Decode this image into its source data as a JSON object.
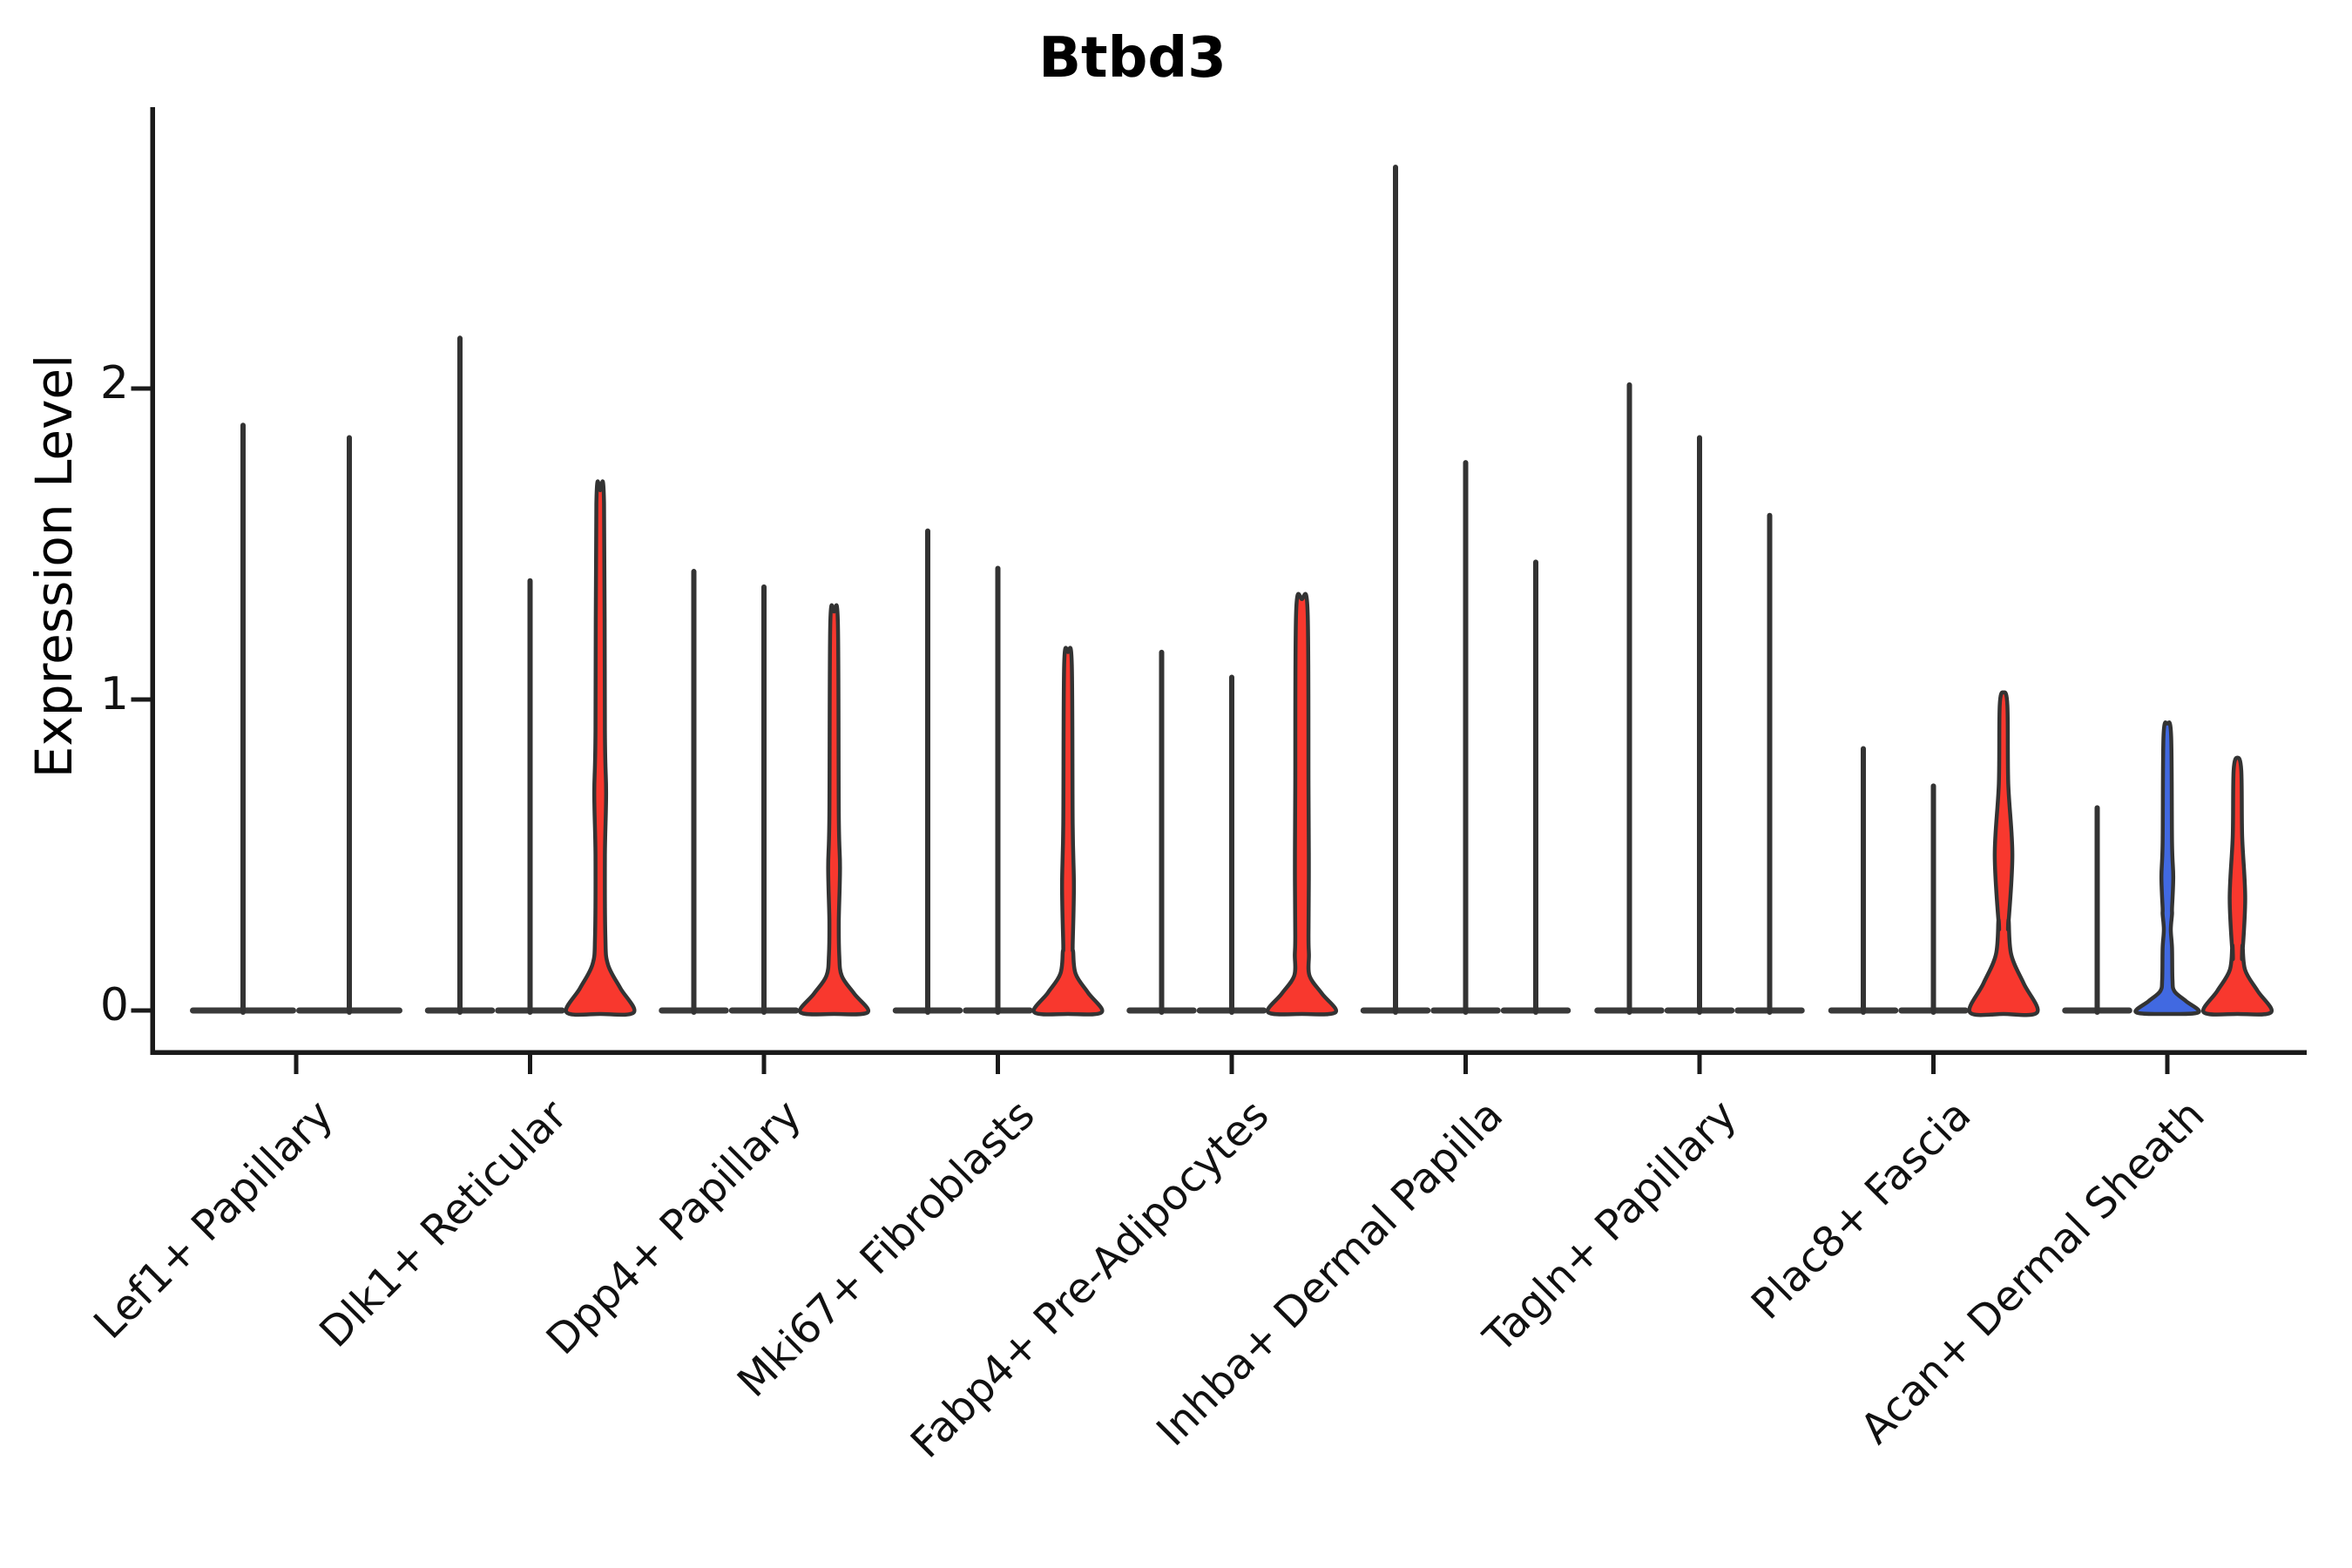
{
  "title": "Btbd3",
  "ylabel": "Expression Level",
  "colors": {
    "red": "#F8382E",
    "blue": "#4169E1",
    "outline": "#333333",
    "axis": "#1a1a1a",
    "base_line": "#3a3a3a",
    "text": "#000000"
  },
  "chart_data": {
    "type": "violin",
    "title": "Btbd3",
    "xlabel": "",
    "ylabel": "Expression Level",
    "ylim": [
      0,
      2.9
    ],
    "yticks": [
      0,
      1,
      2
    ],
    "grid": false,
    "legend": null,
    "categories": [
      "Lef1+ Papillary",
      "Dlk1+ Reticular",
      "Dpp4+ Papillary",
      "Mki67+ Fibroblasts",
      "Fabp4+ Pre-Adipocytes",
      "Inhba+ Dermal Papilla",
      "Tagln+ Papillary",
      "Plac8+ Fascia",
      "Acan+ Dermal Sheath"
    ],
    "groups": [
      {
        "category": "Lef1+ Papillary",
        "violins": [
          {
            "max": 1.89,
            "style": "line"
          },
          {
            "max": 1.85,
            "style": "line"
          }
        ]
      },
      {
        "category": "Dlk1+ Reticular",
        "violins": [
          {
            "max": 2.17,
            "style": "line"
          },
          {
            "max": 1.39,
            "style": "line"
          },
          {
            "max": 1.67,
            "style": "filled",
            "fill": "red",
            "spindles": [
              {
                "bottom": 0.5,
                "peak": 0.7,
                "top": 0.9,
                "hw": 0.17
              }
            ],
            "bell": {
              "top": 0.24,
              "hw": 1.0
            }
          }
        ]
      },
      {
        "category": "Dpp4+ Papillary",
        "violins": [
          {
            "max": 1.42,
            "style": "line"
          },
          {
            "max": 1.37,
            "style": "line"
          },
          {
            "max": 1.28,
            "style": "filled",
            "fill": "red",
            "spindles": [
              {
                "bottom": 0.29,
                "peak": 0.46,
                "top": 0.63,
                "hw": 0.17
              }
            ],
            "bell": {
              "top": 0.18,
              "hw": 1.0
            }
          }
        ]
      },
      {
        "category": "Mki67+ Fibroblasts",
        "violins": [
          {
            "max": 1.55,
            "style": "line"
          },
          {
            "max": 1.43,
            "style": "line"
          },
          {
            "max": 1.15,
            "style": "filled",
            "fill": "red",
            "spindles": [
              {
                "bottom": 0.21,
                "peak": 0.4,
                "top": 0.6,
                "hw": 0.17
              }
            ],
            "bell": {
              "top": 0.19,
              "hw": 1.0
            }
          }
        ]
      },
      {
        "category": "Fabp4+ Pre-Adipocytes",
        "violins": [
          {
            "max": 1.16,
            "style": "line"
          },
          {
            "max": 1.08,
            "style": "line"
          },
          {
            "max": 1.32,
            "style": "filled",
            "fill": "red",
            "stem": 0.12,
            "spindles": [
              {
                "bottom": 0.24,
                "peak": 0.45,
                "top": 0.72,
                "hw": 0.2
              }
            ],
            "bell": {
              "top": 0.18,
              "hw": 1.0
            }
          }
        ]
      },
      {
        "category": "Inhba+ Dermal Papilla",
        "violins": [
          {
            "max": 2.72,
            "style": "line"
          },
          {
            "max": 1.77,
            "style": "line"
          },
          {
            "max": 1.45,
            "style": "line"
          }
        ]
      },
      {
        "category": "Tagln+ Papillary",
        "violins": [
          {
            "max": 2.02,
            "style": "line"
          },
          {
            "max": 1.85,
            "style": "line"
          },
          {
            "max": 1.6,
            "style": "line"
          }
        ]
      },
      {
        "category": "Plac8+ Fascia",
        "violins": [
          {
            "max": 0.85,
            "style": "line"
          },
          {
            "max": 0.73,
            "style": "line"
          },
          {
            "max": 1.02,
            "style": "filled",
            "fill": "red",
            "spindles": [
              {
                "bottom": 0.27,
                "peak": 0.5,
                "top": 0.73,
                "hw": 0.25
              }
            ],
            "bell": {
              "top": 0.29,
              "hw": 1.0
            }
          }
        ]
      },
      {
        "category": "Acan+ Dermal Sheath",
        "violins": [
          {
            "max": 0.66,
            "style": "line"
          },
          {
            "max": 0.92,
            "style": "filled",
            "fill": "blue",
            "spindles": [
              {
                "bottom": 0.2,
                "peak": 0.26,
                "top": 0.31,
                "hw": 0.1
              },
              {
                "bottom": 0.33,
                "peak": 0.43,
                "top": 0.54,
                "hw": 0.17
              }
            ],
            "bell": {
              "top": 0.1,
              "hw": 0.93
            }
          },
          {
            "max": 0.81,
            "style": "filled",
            "fill": "red",
            "spindles": [
              {
                "bottom": 0.17,
                "peak": 0.36,
                "top": 0.56,
                "hw": 0.22
              }
            ],
            "bell": {
              "top": 0.21,
              "hw": 1.0
            }
          }
        ]
      }
    ]
  }
}
